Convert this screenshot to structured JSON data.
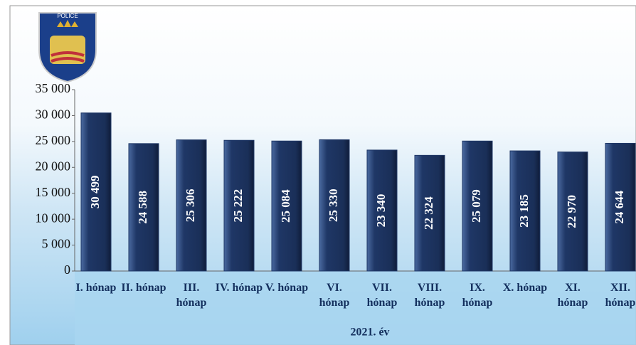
{
  "chart_data": {
    "type": "bar",
    "logo_text": "POLICE",
    "x_label": "2021. év",
    "categories": [
      "I. hónap",
      "II. hónap",
      "III. hónap",
      "IV. hónap",
      "V. hónap",
      "VI. hónap",
      "VII. hónap",
      "VIII. hónap",
      "IX. hónap",
      "X. hónap",
      "XI. hónap",
      "XII. hónap"
    ],
    "values": [
      30499,
      24588,
      25306,
      25222,
      25084,
      25330,
      23340,
      22324,
      25079,
      23185,
      22970,
      24644
    ],
    "value_labels": [
      "30 499",
      "24 588",
      "25 306",
      "25 222",
      "25 084",
      "25 330",
      "23 340",
      "22 324",
      "25 079",
      "23 185",
      "22 970",
      "24 644"
    ],
    "color": "#1f3766",
    "ylim": [
      0,
      35000
    ],
    "yticks": [
      0,
      {
        "value": 5000,
        "label": "5 000"
      },
      {
        "value": 10000,
        "label": "10 000"
      },
      {
        "value": 15000,
        "label": "15 000"
      },
      {
        "value": 20000,
        "label": "20 000"
      },
      {
        "value": 25000,
        "label": "25 000"
      },
      {
        "value": 30000,
        "label": "30 000"
      },
      {
        "value": 35000,
        "label": "35 000"
      }
    ],
    "grid": false
  }
}
